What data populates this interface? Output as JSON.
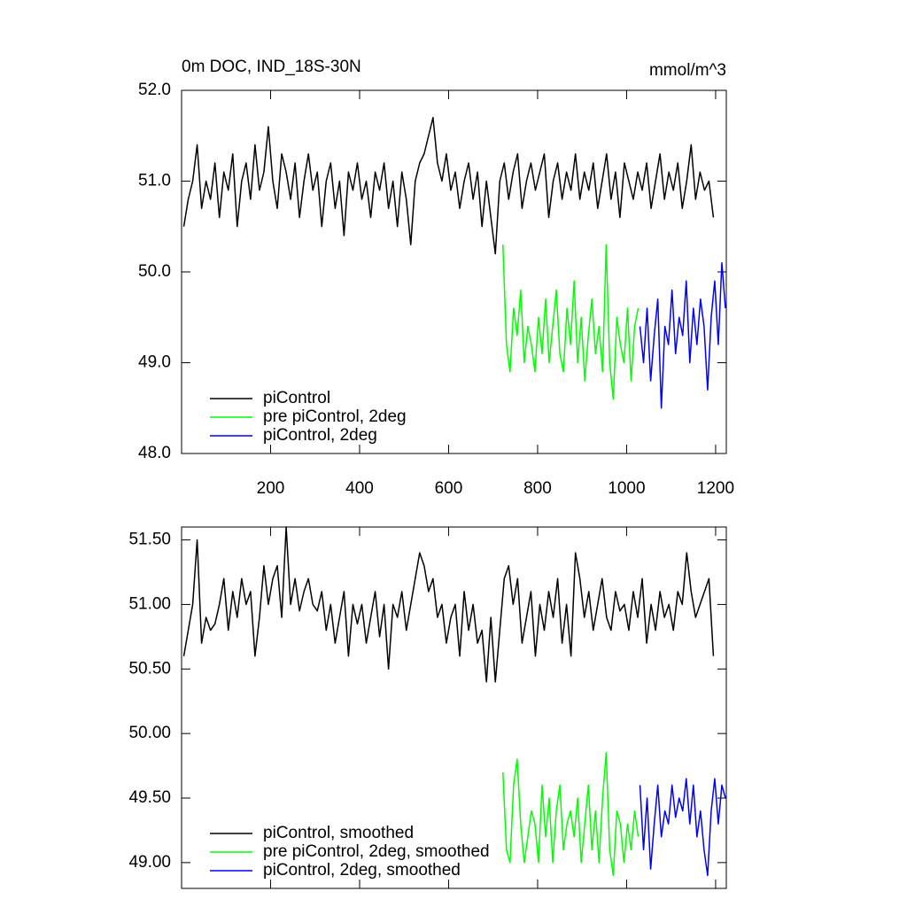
{
  "chart_data": [
    {
      "type": "line",
      "title": "0m DOC, IND_18S-30N",
      "units": "mmol/m^3",
      "xlim": [
        0,
        1224
      ],
      "xticks": [
        200,
        400,
        600,
        800,
        1000,
        1200
      ],
      "ylim": [
        48,
        52
      ],
      "yticks": [
        {
          "value": 48,
          "label": "48.0"
        },
        {
          "value": 49,
          "label": "49.0"
        },
        {
          "value": 50,
          "label": "50.0"
        },
        {
          "value": 51,
          "label": "51.0"
        },
        {
          "value": 52,
          "label": "52.0"
        }
      ],
      "legend": "lower left",
      "series": [
        {
          "name": "piControl",
          "color": "#000000",
          "x": [
            5,
            15,
            25,
            35,
            45,
            55,
            65,
            75,
            85,
            95,
            105,
            115,
            125,
            135,
            145,
            155,
            165,
            175,
            185,
            195,
            205,
            215,
            225,
            235,
            245,
            255,
            265,
            275,
            285,
            295,
            305,
            315,
            325,
            335,
            345,
            355,
            365,
            375,
            385,
            395,
            405,
            415,
            425,
            435,
            445,
            455,
            465,
            475,
            485,
            495,
            505,
            515,
            525,
            535,
            545,
            555,
            565,
            575,
            585,
            595,
            605,
            615,
            625,
            635,
            645,
            655,
            665,
            675,
            685,
            695,
            705,
            715,
            725,
            735,
            745,
            755,
            765,
            775,
            785,
            795,
            805,
            815,
            825,
            835,
            845,
            855,
            865,
            875,
            885,
            895,
            905,
            915,
            925,
            935,
            945,
            955,
            965,
            975,
            985,
            995,
            1005,
            1015,
            1025,
            1035,
            1045,
            1055,
            1065,
            1075,
            1085,
            1095,
            1105,
            1115,
            1125,
            1135,
            1145,
            1155,
            1165,
            1175,
            1185,
            1195
          ],
          "values": [
            50.5,
            50.8,
            51.0,
            51.4,
            50.7,
            51.0,
            50.8,
            51.2,
            50.6,
            51.1,
            50.9,
            51.3,
            50.5,
            51.0,
            51.2,
            50.8,
            51.4,
            50.9,
            51.1,
            51.6,
            51.0,
            50.7,
            51.3,
            51.1,
            50.8,
            51.2,
            50.6,
            51.0,
            51.3,
            50.9,
            51.1,
            50.5,
            51.0,
            51.2,
            50.7,
            51.0,
            50.4,
            51.1,
            50.9,
            51.2,
            50.8,
            51.0,
            50.6,
            51.1,
            50.9,
            51.2,
            50.7,
            51.0,
            50.5,
            51.1,
            50.8,
            50.3,
            51.0,
            51.2,
            51.3,
            51.5,
            51.7,
            51.2,
            51.0,
            51.3,
            50.9,
            51.1,
            50.7,
            51.0,
            51.2,
            50.8,
            51.1,
            50.5,
            51.0,
            50.6,
            50.2,
            51.0,
            51.2,
            50.8,
            51.1,
            51.3,
            50.7,
            51.0,
            51.2,
            50.9,
            51.1,
            51.3,
            50.6,
            51.0,
            51.2,
            50.8,
            51.1,
            50.9,
            51.3,
            50.8,
            51.1,
            50.9,
            51.2,
            50.7,
            51.0,
            51.3,
            50.8,
            51.1,
            50.6,
            51.2,
            51.0,
            50.8,
            51.1,
            50.9,
            51.2,
            50.7,
            51.0,
            51.3,
            50.8,
            51.1,
            50.9,
            51.2,
            50.7,
            51.0,
            51.4,
            50.8,
            51.1,
            50.9,
            51.0,
            50.6
          ]
        },
        {
          "name": "pre piControl, 2deg",
          "color": "#00ff00",
          "x": [
            722,
            730,
            738,
            746,
            754,
            762,
            770,
            778,
            786,
            794,
            802,
            810,
            818,
            826,
            834,
            842,
            850,
            858,
            866,
            874,
            882,
            890,
            898,
            906,
            914,
            922,
            930,
            938,
            946,
            954,
            962,
            970,
            978,
            986,
            994,
            1002,
            1010,
            1018,
            1026
          ],
          "values": [
            50.3,
            49.2,
            48.9,
            49.6,
            49.3,
            49.8,
            49.0,
            49.4,
            49.2,
            48.9,
            49.5,
            49.1,
            49.7,
            49.0,
            49.4,
            49.8,
            49.1,
            48.9,
            49.6,
            49.2,
            49.9,
            49.0,
            49.5,
            48.8,
            49.3,
            49.7,
            49.1,
            49.4,
            48.9,
            50.3,
            49.0,
            48.6,
            49.5,
            49.2,
            49.0,
            49.6,
            48.8,
            49.4,
            49.6
          ]
        },
        {
          "name": "piControl, 2deg",
          "color": "#0000ff",
          "x": [
            1030,
            1038,
            1046,
            1054,
            1062,
            1070,
            1078,
            1086,
            1094,
            1102,
            1110,
            1118,
            1126,
            1134,
            1142,
            1150,
            1158,
            1166,
            1174,
            1182,
            1190,
            1198,
            1206,
            1214,
            1222
          ],
          "values": [
            49.4,
            49.0,
            49.6,
            48.8,
            49.3,
            49.7,
            48.5,
            49.4,
            49.2,
            49.8,
            49.1,
            49.5,
            49.3,
            49.9,
            49.0,
            49.6,
            49.2,
            49.7,
            49.4,
            48.7,
            49.5,
            49.9,
            49.2,
            50.1,
            49.6
          ]
        }
      ]
    },
    {
      "type": "line",
      "xlim": [
        0,
        1224
      ],
      "ylim": [
        48.8,
        51.6
      ],
      "yticks": [
        {
          "value": 49,
          "label": "49.00"
        },
        {
          "value": 49.5,
          "label": "49.50"
        },
        {
          "value": 50,
          "label": "50.00"
        },
        {
          "value": 50.5,
          "label": "50.50"
        },
        {
          "value": 51,
          "label": "51.00"
        },
        {
          "value": 51.5,
          "label": "51.50"
        }
      ],
      "legend": "lower left",
      "series": [
        {
          "name": "piControl, smoothed",
          "color": "#000000",
          "x": [
            5,
            15,
            25,
            35,
            45,
            55,
            65,
            75,
            85,
            95,
            105,
            115,
            125,
            135,
            145,
            155,
            165,
            175,
            185,
            195,
            205,
            215,
            225,
            235,
            245,
            255,
            265,
            275,
            285,
            295,
            305,
            315,
            325,
            335,
            345,
            355,
            365,
            375,
            385,
            395,
            405,
            415,
            425,
            435,
            445,
            455,
            465,
            475,
            485,
            495,
            505,
            515,
            525,
            535,
            545,
            555,
            565,
            575,
            585,
            595,
            605,
            615,
            625,
            635,
            645,
            655,
            665,
            675,
            685,
            695,
            705,
            715,
            725,
            735,
            745,
            755,
            765,
            775,
            785,
            795,
            805,
            815,
            825,
            835,
            845,
            855,
            865,
            875,
            885,
            895,
            905,
            915,
            925,
            935,
            945,
            955,
            965,
            975,
            985,
            995,
            1005,
            1015,
            1025,
            1035,
            1045,
            1055,
            1065,
            1075,
            1085,
            1095,
            1105,
            1115,
            1125,
            1135,
            1145,
            1155,
            1165,
            1175,
            1185,
            1195
          ],
          "values": [
            50.6,
            50.8,
            51.0,
            51.5,
            50.7,
            50.9,
            50.8,
            50.85,
            51.0,
            51.2,
            50.8,
            51.1,
            50.9,
            51.2,
            51.0,
            51.1,
            50.6,
            50.9,
            51.3,
            51.0,
            51.2,
            51.3,
            50.9,
            51.6,
            51.0,
            51.2,
            50.95,
            51.1,
            51.2,
            51.0,
            50.95,
            51.1,
            50.8,
            51.0,
            50.7,
            50.9,
            51.1,
            50.6,
            51.0,
            50.85,
            51.0,
            50.7,
            50.9,
            51.1,
            50.75,
            51.0,
            50.5,
            51.0,
            50.9,
            51.1,
            50.8,
            51.0,
            51.2,
            51.4,
            51.3,
            51.1,
            51.2,
            50.9,
            51.0,
            50.7,
            50.9,
            51.0,
            50.6,
            51.1,
            50.8,
            51.0,
            50.7,
            50.8,
            50.4,
            50.9,
            50.4,
            50.8,
            51.2,
            51.3,
            51.0,
            51.2,
            50.7,
            50.9,
            51.1,
            50.6,
            51.0,
            50.8,
            51.1,
            50.9,
            51.2,
            50.7,
            51.0,
            50.6,
            51.4,
            51.2,
            50.9,
            51.1,
            50.8,
            51.0,
            51.2,
            50.9,
            50.8,
            51.1,
            50.95,
            51.0,
            50.8,
            51.1,
            50.9,
            51.2,
            50.7,
            51.0,
            50.8,
            51.1,
            50.9,
            51.0,
            50.8,
            51.1,
            51.0,
            51.4,
            51.1,
            50.9,
            51.0,
            51.1,
            51.2,
            50.6
          ]
        },
        {
          "name": "pre piControl, 2deg, smoothed",
          "color": "#00ff00",
          "x": [
            722,
            730,
            738,
            746,
            754,
            762,
            770,
            778,
            786,
            794,
            802,
            810,
            818,
            826,
            834,
            842,
            850,
            858,
            866,
            874,
            882,
            890,
            898,
            906,
            914,
            922,
            930,
            938,
            946,
            954,
            962,
            970,
            978,
            986,
            994,
            1002,
            1010,
            1018,
            1026
          ],
          "values": [
            49.7,
            49.1,
            49.0,
            49.6,
            49.8,
            49.3,
            49.0,
            49.2,
            49.4,
            49.3,
            49.0,
            49.6,
            49.2,
            49.5,
            49.0,
            49.4,
            49.6,
            49.1,
            49.3,
            49.4,
            49.2,
            49.5,
            49.0,
            49.3,
            49.6,
            49.1,
            49.4,
            49.0,
            49.5,
            49.85,
            49.1,
            48.9,
            49.4,
            49.3,
            49.0,
            49.3,
            49.1,
            49.4,
            49.2
          ]
        },
        {
          "name": "piControl, 2deg, smoothed",
          "color": "#0000ff",
          "x": [
            1030,
            1038,
            1046,
            1054,
            1062,
            1070,
            1078,
            1086,
            1094,
            1102,
            1110,
            1118,
            1126,
            1134,
            1142,
            1150,
            1158,
            1166,
            1174,
            1182,
            1190,
            1198,
            1206,
            1214,
            1222
          ],
          "values": [
            49.6,
            49.1,
            49.5,
            48.95,
            49.3,
            49.6,
            49.2,
            49.4,
            49.3,
            49.6,
            49.35,
            49.5,
            49.4,
            49.65,
            49.3,
            49.6,
            49.2,
            49.4,
            49.1,
            48.9,
            49.4,
            49.65,
            49.3,
            49.6,
            49.5
          ]
        }
      ]
    }
  ]
}
